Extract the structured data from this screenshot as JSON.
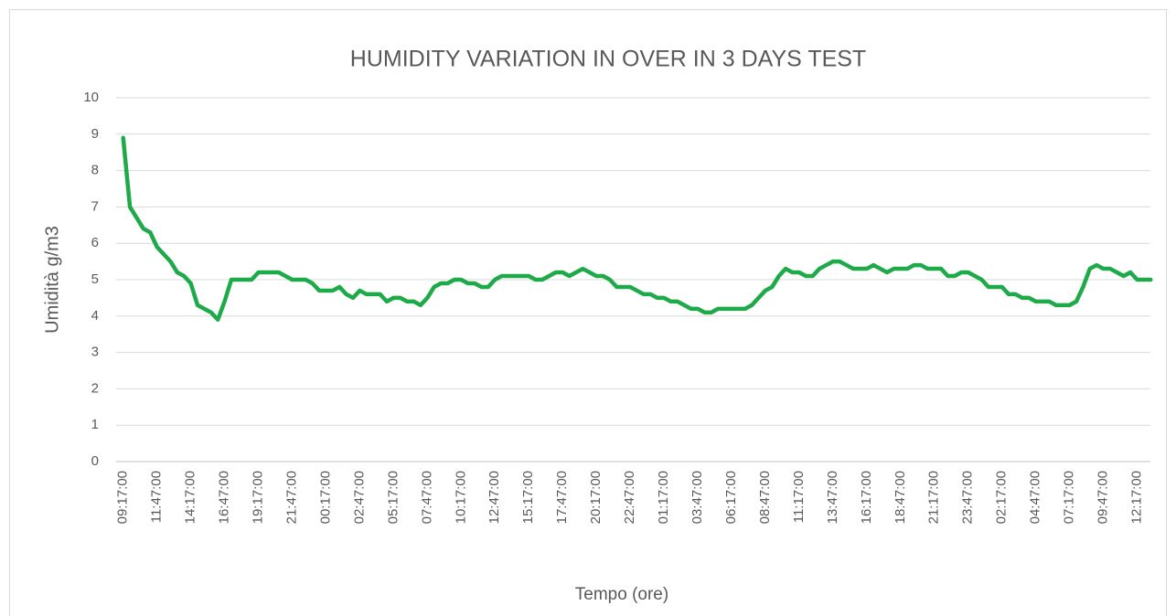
{
  "chart_data": {
    "type": "line",
    "title": "HUMIDITY VARIATION IN OVER IN 3 DAYS TEST",
    "x_label": "Tempo (ore)",
    "y_label": "Umidità g/m3",
    "categories": [
      "09:17:00",
      null,
      null,
      null,
      null,
      "11:47:00",
      null,
      null,
      null,
      null,
      "14:17:00",
      null,
      null,
      null,
      null,
      "16:47:00",
      null,
      null,
      null,
      null,
      "19:17:00",
      null,
      null,
      null,
      null,
      "21:47:00",
      null,
      null,
      null,
      null,
      "00:17:00",
      null,
      null,
      null,
      null,
      "02:47:00",
      null,
      null,
      null,
      null,
      "05:17:00",
      null,
      null,
      null,
      null,
      "07:47:00",
      null,
      null,
      null,
      null,
      "10:17:00",
      null,
      null,
      null,
      null,
      "12:47:00",
      null,
      null,
      null,
      null,
      "15:17:00",
      null,
      null,
      null,
      null,
      "17:47:00",
      null,
      null,
      null,
      null,
      "20:17:00",
      null,
      null,
      null,
      null,
      "22:47:00",
      null,
      null,
      null,
      null,
      "01:17:00",
      null,
      null,
      null,
      null,
      "03:47:00",
      null,
      null,
      null,
      null,
      "06:17:00",
      null,
      null,
      null,
      null,
      "08:47:00",
      null,
      null,
      null,
      null,
      "11:17:00",
      null,
      null,
      null,
      null,
      "13:47:00",
      null,
      null,
      null,
      null,
      "16:17:00",
      null,
      null,
      null,
      null,
      "18:47:00",
      null,
      null,
      null,
      null,
      "21:17:00",
      null,
      null,
      null,
      null,
      "23:47:00",
      null,
      null,
      null,
      null,
      "02:17:00",
      null,
      null,
      null,
      null,
      "04:47:00",
      null,
      null,
      null,
      null,
      "07:17:00",
      null,
      null,
      null,
      null,
      "09:47:00",
      null,
      null,
      null,
      null,
      "12:17:00",
      null,
      null
    ],
    "series": [
      {
        "name": "Umidità",
        "color": "#1faa4a",
        "values": [
          8.9,
          7.0,
          6.7,
          6.4,
          6.3,
          5.9,
          5.7,
          5.5,
          5.2,
          5.1,
          4.9,
          4.3,
          4.2,
          4.1,
          3.9,
          4.4,
          5.0,
          5.0,
          5.0,
          5.0,
          5.2,
          5.2,
          5.2,
          5.2,
          5.1,
          5.0,
          5.0,
          5.0,
          4.9,
          4.7,
          4.7,
          4.7,
          4.8,
          4.6,
          4.5,
          4.7,
          4.6,
          4.6,
          4.6,
          4.4,
          4.5,
          4.5,
          4.4,
          4.4,
          4.3,
          4.5,
          4.8,
          4.9,
          4.9,
          5.0,
          5.0,
          4.9,
          4.9,
          4.8,
          4.8,
          5.0,
          5.1,
          5.1,
          5.1,
          5.1,
          5.1,
          5.0,
          5.0,
          5.1,
          5.2,
          5.2,
          5.1,
          5.2,
          5.3,
          5.2,
          5.1,
          5.1,
          5.0,
          4.8,
          4.8,
          4.8,
          4.7,
          4.6,
          4.6,
          4.5,
          4.5,
          4.4,
          4.4,
          4.3,
          4.2,
          4.2,
          4.1,
          4.1,
          4.2,
          4.2,
          4.2,
          4.2,
          4.2,
          4.3,
          4.5,
          4.7,
          4.8,
          5.1,
          5.3,
          5.2,
          5.2,
          5.1,
          5.1,
          5.3,
          5.4,
          5.5,
          5.5,
          5.4,
          5.3,
          5.3,
          5.3,
          5.4,
          5.3,
          5.2,
          5.3,
          5.3,
          5.3,
          5.4,
          5.4,
          5.3,
          5.3,
          5.3,
          5.1,
          5.1,
          5.2,
          5.2,
          5.1,
          5.0,
          4.8,
          4.8,
          4.8,
          4.6,
          4.6,
          4.5,
          4.5,
          4.4,
          4.4,
          4.4,
          4.3,
          4.3,
          4.3,
          4.4,
          4.8,
          5.3,
          5.4,
          5.3,
          5.3,
          5.2,
          5.1,
          5.2,
          5.0,
          5.0,
          5.0
        ]
      }
    ],
    "ylim": [
      0,
      10
    ],
    "yticks": [
      0,
      1,
      2,
      3,
      4,
      5,
      6,
      7,
      8,
      9,
      10
    ],
    "grid": true
  }
}
